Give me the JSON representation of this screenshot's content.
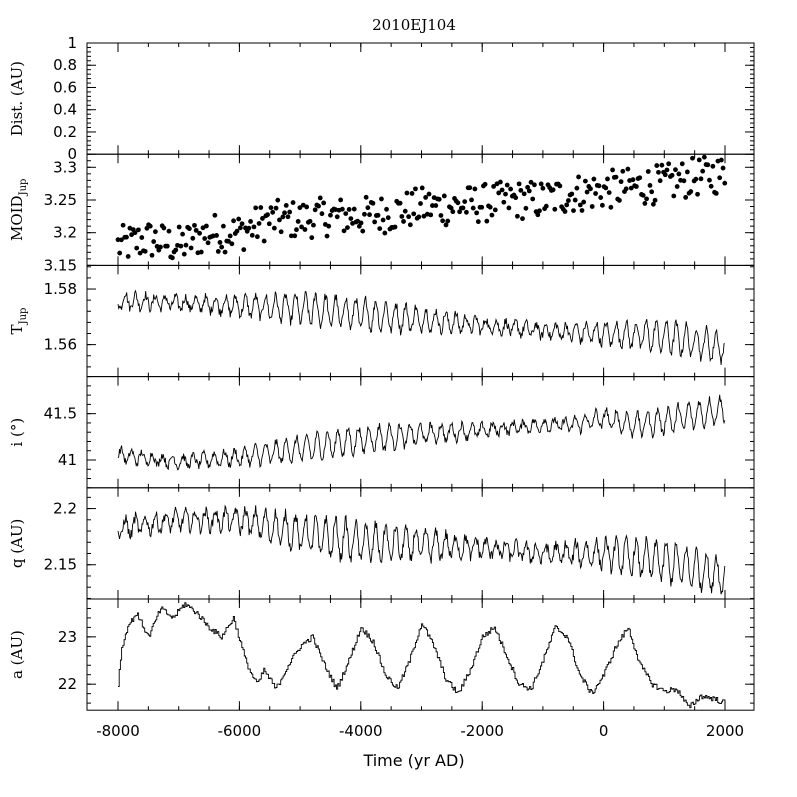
{
  "chart_data": {
    "type": "line",
    "title": "2010EJ104",
    "xlabel": "Time (yr AD)",
    "xlim": [
      -8000,
      2000
    ],
    "x_ticks": [
      -8000,
      -6000,
      -4000,
      -2000,
      0,
      2000
    ],
    "x_tick_labels": [
      "-8000",
      "-6000",
      "-4000",
      "-2000",
      "0",
      "2000"
    ],
    "panels": [
      {
        "key": "dist",
        "ylabel": "Dist. (AU)",
        "ylim": [
          0,
          1
        ],
        "y_ticks": [
          0,
          0.2,
          0.4,
          0.6,
          0.8,
          1
        ],
        "y_tick_labels": [
          "0",
          "0.2",
          "0.4",
          "0.6",
          "0.8",
          "1"
        ],
        "style": "empty",
        "x": [],
        "y": []
      },
      {
        "key": "moid",
        "ylabel": "MOIDJup",
        "ylabel_main": "MOID",
        "ylabel_sub": "Jup",
        "ylim": [
          3.15,
          3.32
        ],
        "y_ticks": [
          3.15,
          3.2,
          3.25,
          3.3
        ],
        "y_tick_labels": [
          "3.15",
          "3.2",
          "3.25",
          "3.3"
        ],
        "style": "scatter",
        "x": [
          -8000,
          -7500,
          -7000,
          -6500,
          -6000,
          -5500,
          -5000,
          -4500,
          -4000,
          -3500,
          -3000,
          -2500,
          -2000,
          -1500,
          -1000,
          -500,
          0,
          500,
          1000,
          1500,
          2000
        ],
        "y": [
          3.18,
          3.19,
          3.18,
          3.2,
          3.2,
          3.22,
          3.22,
          3.225,
          3.225,
          3.23,
          3.24,
          3.24,
          3.245,
          3.25,
          3.25,
          3.26,
          3.265,
          3.27,
          3.275,
          3.285,
          3.29
        ]
      },
      {
        "key": "tjup",
        "ylabel": "TJup",
        "ylabel_main": "T",
        "ylabel_sub": "Jup",
        "ylim": [
          1.5485,
          1.5885
        ],
        "y_ticks": [
          1.56,
          1.58
        ],
        "y_tick_labels": [
          "1.56",
          "1.58"
        ],
        "style": "line",
        "x": [
          -8000,
          -7000,
          -6000,
          -5000,
          -4000,
          -3000,
          -2000,
          -1000,
          0,
          1000,
          2000
        ],
        "y": [
          1.576,
          1.575,
          1.574,
          1.573,
          1.571,
          1.569,
          1.567,
          1.565,
          1.564,
          1.563,
          1.559
        ]
      },
      {
        "key": "inc",
        "ylabel": "i (°)",
        "ylim": [
          40.7,
          41.9
        ],
        "y_ticks": [
          41,
          41.5
        ],
        "y_tick_labels": [
          "41",
          "41.5"
        ],
        "style": "line",
        "x": [
          -8000,
          -7000,
          -6000,
          -5000,
          -4000,
          -3000,
          -2000,
          -1000,
          -500,
          0,
          500,
          1000,
          2000
        ],
        "y": [
          41.05,
          40.98,
          41.03,
          41.12,
          41.22,
          41.28,
          41.32,
          41.38,
          41.38,
          41.45,
          41.38,
          41.42,
          41.55
        ]
      },
      {
        "key": "q",
        "ylabel": "q (AU)",
        "ylim": [
          2.1195,
          2.2185
        ],
        "y_ticks": [
          2.15,
          2.2
        ],
        "y_tick_labels": [
          "2.15",
          "2.2"
        ],
        "style": "line",
        "x": [
          -8000,
          -7000,
          -6000,
          -5000,
          -4000,
          -3000,
          -2000,
          -1000,
          0,
          1000,
          2000
        ],
        "y": [
          2.182,
          2.19,
          2.19,
          2.178,
          2.17,
          2.168,
          2.165,
          2.16,
          2.16,
          2.153,
          2.14
        ]
      },
      {
        "key": "a",
        "ylabel": "a (AU)",
        "ylim": [
          21.45,
          23.8
        ],
        "y_ticks": [
          22,
          23
        ],
        "y_tick_labels": [
          "22",
          "23"
        ],
        "style": "step",
        "x": [
          -8000,
          -7950,
          -7850,
          -7700,
          -7500,
          -7300,
          -7100,
          -6900,
          -6700,
          -6500,
          -6300,
          -6100,
          -5900,
          -5800,
          -5700,
          -5600,
          -5400,
          -5200,
          -5000,
          -4800,
          -4600,
          -4400,
          -4200,
          -4000,
          -3800,
          -3600,
          -3400,
          -3200,
          -3000,
          -2800,
          -2600,
          -2400,
          -2200,
          -2000,
          -1800,
          -1600,
          -1400,
          -1200,
          -1000,
          -800,
          -600,
          -400,
          -200,
          0,
          200,
          400,
          600,
          800,
          1000,
          1200,
          1400,
          1600,
          1800,
          2000
        ],
        "y": [
          22.0,
          22.7,
          23.2,
          23.5,
          23.0,
          23.6,
          23.4,
          23.7,
          23.5,
          23.2,
          23.0,
          23.4,
          22.5,
          22.2,
          22.0,
          22.3,
          21.9,
          22.4,
          22.8,
          23.0,
          22.4,
          21.9,
          22.5,
          23.2,
          22.9,
          22.2,
          21.9,
          22.5,
          23.3,
          22.8,
          22.1,
          21.8,
          22.3,
          23.0,
          23.2,
          22.6,
          22.0,
          21.9,
          22.5,
          23.2,
          23.0,
          22.2,
          21.8,
          22.2,
          22.8,
          23.2,
          22.4,
          22.0,
          21.85,
          21.9,
          21.5,
          21.75,
          21.7,
          21.6
        ]
      }
    ]
  }
}
